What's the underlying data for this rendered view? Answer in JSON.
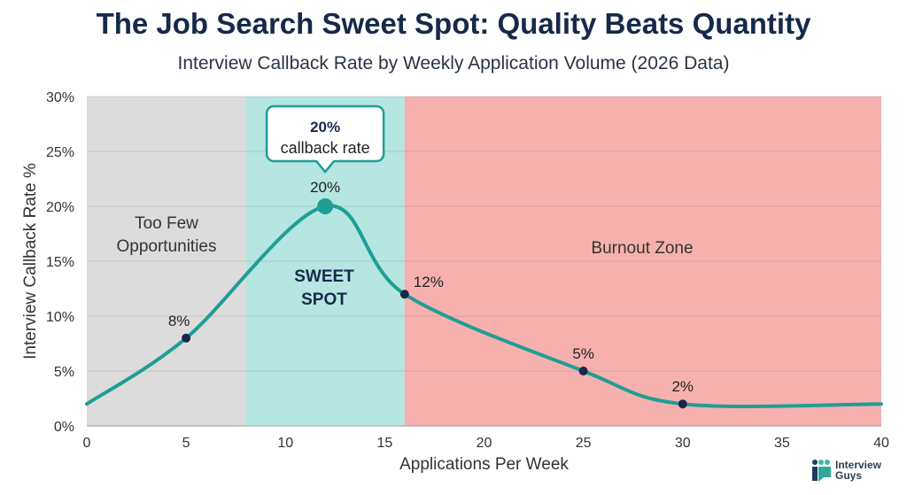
{
  "title": "The Job Search Sweet Spot: Quality Beats Quantity",
  "subtitle": "Interview Callback Rate by Weekly Application Volume (2026 Data)",
  "logo": {
    "line1": "Interview",
    "line2": "Guys"
  },
  "chart_data": {
    "type": "line",
    "xlabel": "Applications Per Week",
    "ylabel": "Interview Callback Rate %",
    "xlim": [
      0,
      40
    ],
    "ylim": [
      0,
      30
    ],
    "x_ticks": [
      "0",
      "5",
      "10",
      "15",
      "20",
      "25",
      "30",
      "35",
      "40"
    ],
    "y_ticks": [
      "0%",
      "5%",
      "10%",
      "15%",
      "20%",
      "25%",
      "30%"
    ],
    "grid": true,
    "line_color": "#1f9e95",
    "series": [
      {
        "x": [
          0,
          5,
          12,
          16,
          25,
          30,
          40
        ],
        "y": [
          2,
          8,
          20,
          12,
          5,
          2,
          2
        ]
      }
    ],
    "data_labels": [
      {
        "x": 5,
        "y": 8,
        "text": "8%"
      },
      {
        "x": 12,
        "y": 20,
        "text": "20%"
      },
      {
        "x": 16,
        "y": 12,
        "text": "12%"
      },
      {
        "x": 25,
        "y": 5,
        "text": "5%"
      },
      {
        "x": 30,
        "y": 2,
        "text": "2%"
      }
    ],
    "regions": [
      {
        "from": 0,
        "to": 8,
        "label": "Too Few Opportunities",
        "color": "#dcdcdc",
        "bold": false
      },
      {
        "from": 8,
        "to": 16,
        "label": "SWEET SPOT",
        "color": "#b5e6e1",
        "bold": true
      },
      {
        "from": 16,
        "to": 40,
        "label": "Burnout Zone",
        "color": "#f6b1ae",
        "bold": false
      }
    ],
    "callout": {
      "value": "20%",
      "text": "callback rate"
    }
  }
}
